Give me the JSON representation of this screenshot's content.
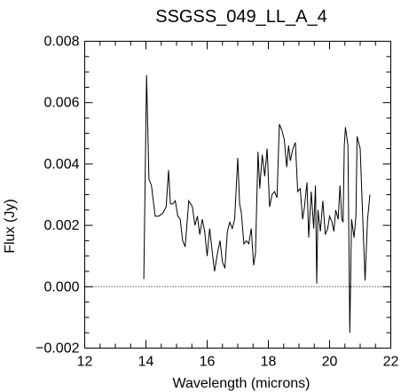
{
  "chart_data": {
    "type": "line",
    "title": "SSGSS_049_LL_A_4",
    "xlabel": "Wavelength (microns)",
    "ylabel": "Flux (Jy)",
    "xlim": [
      12,
      22
    ],
    "ylim": [
      -0.002,
      0.008
    ],
    "xticks": [
      12,
      14,
      16,
      18,
      20,
      22
    ],
    "xtick_labels": [
      "12",
      "14",
      "16",
      "18",
      "20",
      "22"
    ],
    "yticks": [
      -0.002,
      0.0,
      0.002,
      0.004,
      0.006,
      0.008
    ],
    "ytick_labels": [
      "−0.002",
      "0.000",
      "0.002",
      "0.004",
      "0.006",
      "0.008"
    ],
    "reference_line": {
      "y": 0.0,
      "style": "dotted"
    },
    "grid": false,
    "series": [
      {
        "x": [
          13.93,
          14.02,
          14.1,
          14.18,
          14.3,
          14.42,
          14.55,
          14.66,
          14.74,
          14.8,
          14.88,
          14.96,
          15.04,
          15.12,
          15.2,
          15.28,
          15.4,
          15.52,
          15.6,
          15.68,
          15.76,
          15.84,
          15.92,
          16.0,
          16.08,
          16.16,
          16.24,
          16.34,
          16.42,
          16.5,
          16.58,
          16.66,
          16.74,
          16.82,
          16.9,
          17.0,
          17.06,
          17.12,
          17.2,
          17.28,
          17.36,
          17.44,
          17.52,
          17.58,
          17.66,
          17.72,
          17.8,
          17.88,
          17.96,
          18.04,
          18.12,
          18.2,
          18.28,
          18.36,
          18.44,
          18.52,
          18.6,
          18.66,
          18.72,
          18.8,
          18.88,
          18.96,
          19.04,
          19.12,
          19.18,
          19.26,
          19.32,
          19.4,
          19.48,
          19.54,
          19.58,
          19.62,
          19.7,
          19.78,
          19.86,
          19.94,
          20.0,
          20.08,
          20.14,
          20.2,
          20.28,
          20.34,
          20.4,
          20.44,
          20.48,
          20.52,
          20.6,
          20.66,
          20.72,
          20.8,
          20.86,
          20.9,
          21.0,
          21.08,
          21.16,
          21.24,
          21.32
        ],
        "y": [
          0.00025,
          0.0069,
          0.0035,
          0.0033,
          0.0023,
          0.0023,
          0.0024,
          0.0026,
          0.0038,
          0.0027,
          0.0027,
          0.0028,
          0.0023,
          0.0022,
          0.0015,
          0.0013,
          0.0028,
          0.0026,
          0.002,
          0.0023,
          0.0017,
          0.0022,
          0.0018,
          0.001,
          0.0019,
          0.0012,
          0.0005,
          0.0011,
          0.0015,
          0.0008,
          0.0006,
          0.0018,
          0.0021,
          0.0019,
          0.0022,
          0.0042,
          0.0027,
          0.0024,
          0.0014,
          0.0015,
          0.0014,
          0.0019,
          0.0007,
          0.0011,
          0.0044,
          0.0032,
          0.0043,
          0.0036,
          0.0045,
          0.0026,
          0.003,
          0.0031,
          0.0029,
          0.0053,
          0.0051,
          0.0048,
          0.0039,
          0.0046,
          0.0041,
          0.0045,
          0.0047,
          0.0031,
          0.0032,
          0.0022,
          0.0026,
          0.0034,
          0.0016,
          0.0031,
          0.0019,
          0.0033,
          0.0001,
          0.0025,
          0.0018,
          0.0028,
          0.0017,
          0.0019,
          0.0023,
          0.0021,
          0.0018,
          0.0025,
          0.0022,
          0.0033,
          0.0022,
          0.0021,
          0.0046,
          0.0052,
          0.0046,
          -0.0015,
          0.0022,
          0.0016,
          0.0023,
          0.0049,
          0.0045,
          0.0023,
          0.0002,
          0.0022,
          0.003
        ]
      }
    ]
  }
}
